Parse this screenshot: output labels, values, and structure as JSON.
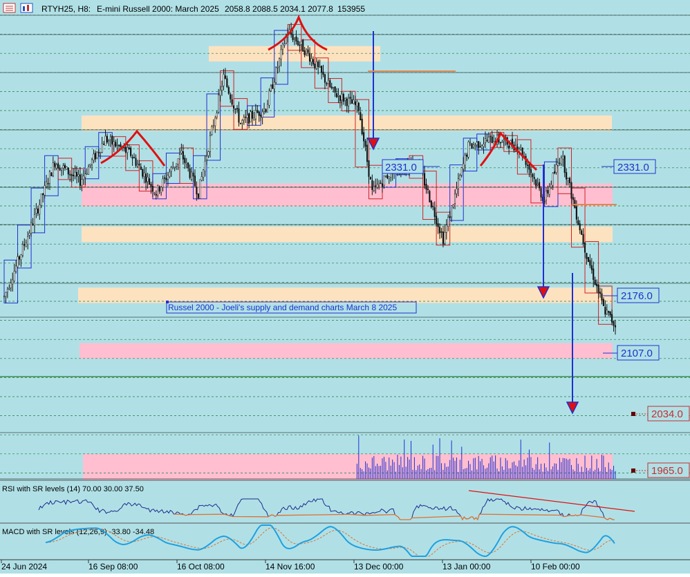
{
  "header": {
    "symbol": "RTYH25, H8:",
    "description": "E-mini Russell 2000: March 2025",
    "ohlc": "2058.8 2088.5 2034.1 2077.8",
    "volume": "153955"
  },
  "annotation_title": "Russel 2000 - Joeli's supply and demand charts March 8 2025",
  "price_labels": {
    "left_2331": "2331.0",
    "right_2331": "2331.0",
    "right_2176": "2176.0",
    "right_2107": "2107.0",
    "right_2034": "2034.0",
    "right_1965": "1965.0"
  },
  "indicators": {
    "rsi_label": "RSI with SR levels (14) 70.00 30.00 37.50",
    "macd_label": "MACD with SR levels (12,26,9) -33.80 -34.48"
  },
  "colors": {
    "background": "#b0e0e6",
    "supply_zone": "#fde2c0",
    "demand_zone": "#ffbfd0",
    "drawing_red": "#e01010",
    "drawing_blue": "#1f2fd0",
    "candle": "#101010",
    "rsi_line": "#1a2a8a",
    "macd_line": "#1ea0e0",
    "macd_signal": "#e07030"
  },
  "chart_data": {
    "type": "candlestick",
    "title": "RTYH25, H8: E-mini Russell 2000: March 2025",
    "x_ticks": [
      "24 Jun 2024",
      "16 Sep 08:00",
      "16 Oct 08:00",
      "14 Nov 16:00",
      "13 Dec 00:00",
      "13 Jan 00:00",
      "10 Feb 00:00"
    ],
    "ylim": [
      1940,
      2480
    ],
    "key_levels": [
      2331.0,
      2176.0,
      2107.0,
      2034.0,
      1965.0
    ],
    "zones": [
      {
        "kind": "supply",
        "from": 2420,
        "to": 2440
      },
      {
        "kind": "supply",
        "from": 2330,
        "to": 2350
      },
      {
        "kind": "demand",
        "from": 2232,
        "to": 2262
      },
      {
        "kind": "supply",
        "from": 2186,
        "to": 2206
      },
      {
        "kind": "supply",
        "from": 2107,
        "to": 2127
      },
      {
        "kind": "demand",
        "from": 2035,
        "to": 2055
      }
    ],
    "approx_close_path": [
      {
        "bar": 0,
        "close": 2115
      },
      {
        "bar": 15,
        "close": 2200
      },
      {
        "bar": 30,
        "close": 2290
      },
      {
        "bar": 45,
        "close": 2265
      },
      {
        "bar": 60,
        "close": 2320
      },
      {
        "bar": 75,
        "close": 2300
      },
      {
        "bar": 90,
        "close": 2250
      },
      {
        "bar": 105,
        "close": 2300
      },
      {
        "bar": 115,
        "close": 2250
      },
      {
        "bar": 130,
        "close": 2400
      },
      {
        "bar": 140,
        "close": 2340
      },
      {
        "bar": 155,
        "close": 2360
      },
      {
        "bar": 168,
        "close": 2460
      },
      {
        "bar": 180,
        "close": 2430
      },
      {
        "bar": 195,
        "close": 2380
      },
      {
        "bar": 210,
        "close": 2360
      },
      {
        "bar": 218,
        "close": 2250
      },
      {
        "bar": 230,
        "close": 2280
      },
      {
        "bar": 245,
        "close": 2290
      },
      {
        "bar": 260,
        "close": 2190
      },
      {
        "bar": 275,
        "close": 2310
      },
      {
        "bar": 290,
        "close": 2320
      },
      {
        "bar": 305,
        "close": 2310
      },
      {
        "bar": 320,
        "close": 2240
      },
      {
        "bar": 330,
        "close": 2300
      },
      {
        "bar": 345,
        "close": 2170
      },
      {
        "bar": 355,
        "close": 2100
      },
      {
        "bar": 362,
        "close": 2078
      }
    ]
  }
}
